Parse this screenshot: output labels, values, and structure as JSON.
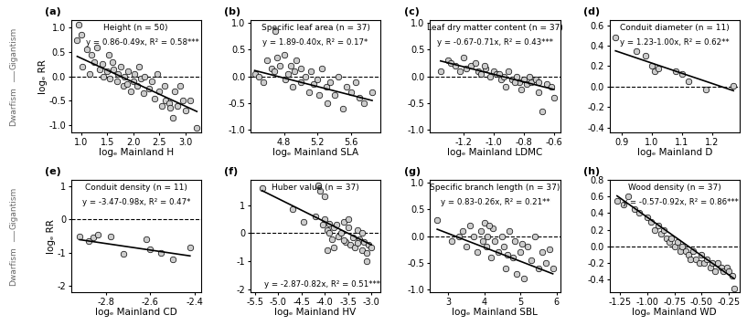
{
  "chart_data": [
    {
      "type": "scatter",
      "title": "Height (n = 50)",
      "xlabel": "logₑ Mainland H",
      "ylabel": "logₑ RR",
      "annotations": {
        "panel": "(a)",
        "equation": "y = 0.86-0.49x, R² = 0.58***",
        "side_top": "Gigantism",
        "side_bottom": "Dwarfism"
      },
      "fit_line": {
        "intercept": 0.86,
        "slope": -0.49
      },
      "hline": 0,
      "x": [
        0.92,
        0.95,
        1.0,
        1.02,
        1.1,
        1.15,
        1.2,
        1.25,
        1.3,
        1.35,
        1.4,
        1.42,
        1.5,
        1.52,
        1.55,
        1.6,
        1.62,
        1.68,
        1.7,
        1.75,
        1.8,
        1.82,
        1.88,
        1.9,
        1.95,
        2.0,
        2.02,
        2.08,
        2.1,
        2.15,
        2.2,
        2.22,
        2.3,
        2.35,
        2.4,
        2.45,
        2.5,
        2.55,
        2.6,
        2.62,
        2.68,
        2.7,
        2.75,
        2.8,
        2.85,
        2.9,
        2.95,
        3.0,
        3.1,
        3.22
      ],
      "values": [
        0.75,
        1.05,
        0.85,
        0.2,
        0.55,
        0.05,
        0.45,
        0.3,
        0.6,
        0.15,
        0.25,
        0.0,
        0.1,
        0.45,
        -0.05,
        0.3,
        0.15,
        -0.1,
        0.05,
        0.2,
        -0.2,
        0.0,
        -0.15,
        0.1,
        -0.3,
        -0.1,
        0.05,
        -0.2,
        0.2,
        -0.05,
        -0.35,
        0.0,
        -0.25,
        -0.1,
        -0.45,
        0.05,
        -0.3,
        -0.6,
        -0.2,
        -0.5,
        -0.55,
        -0.65,
        -0.85,
        -0.3,
        -0.6,
        -0.2,
        -0.5,
        -0.7,
        -0.5,
        -1.05
      ],
      "xlim": [
        0.8,
        3.3
      ],
      "xticks": [
        1.0,
        1.5,
        2.0,
        2.5,
        3.0
      ],
      "ylim": [
        -1.15,
        1.15
      ],
      "yticks": [
        -1.0,
        -0.5,
        0.0,
        0.5,
        1.0
      ],
      "color": "#cccccc",
      "marker": "o"
    },
    {
      "type": "scatter",
      "title": "Specific leaf area (n = 37)",
      "xlabel": "logₑ Mainland SLA",
      "annotations": {
        "panel": "(b)",
        "equation": "y = 1.89-0.40x, R² = 0.17*"
      },
      "fit_line": {
        "intercept": 1.89,
        "slope": -0.4
      },
      "hline": 0,
      "x": [
        4.45,
        4.5,
        4.55,
        4.6,
        4.65,
        4.7,
        4.72,
        4.75,
        4.8,
        4.82,
        4.85,
        4.88,
        4.9,
        4.92,
        4.95,
        5.0,
        5.0,
        5.05,
        5.1,
        5.12,
        5.15,
        5.2,
        5.22,
        5.25,
        5.3,
        5.32,
        5.35,
        5.4,
        5.45,
        5.5,
        5.55,
        5.6,
        5.65,
        5.7,
        5.75,
        5.85,
        4.68
      ],
      "values": [
        0.05,
        0.0,
        -0.1,
        0.3,
        0.15,
        0.85,
        0.35,
        0.2,
        0.4,
        -0.05,
        0.05,
        0.2,
        -0.2,
        0.1,
        0.3,
        -0.1,
        0.15,
        0.0,
        -0.3,
        0.1,
        -0.15,
        -0.05,
        -0.35,
        0.15,
        -0.2,
        -0.5,
        -0.1,
        -0.35,
        0.0,
        -0.6,
        -0.2,
        -0.3,
        -0.1,
        -0.4,
        -0.5,
        -0.3,
        0.1
      ],
      "xlim": [
        4.4,
        5.95
      ],
      "xticks": [
        4.8,
        5.2,
        5.6
      ],
      "ylim": [
        -1.05,
        1.05
      ],
      "yticks": [
        -1.0,
        -0.5,
        0.0,
        0.5,
        1.0
      ],
      "color": "#cccccc",
      "marker": "o"
    },
    {
      "type": "scatter",
      "title": "Leaf dry matter content (n = 37)",
      "xlabel": "logₑ Mainland LDMC",
      "annotations": {
        "panel": "(c)",
        "equation": "y = -0.67-0.71x, R² = 0.43***"
      },
      "fit_line": {
        "intercept": -0.67,
        "slope": -0.71
      },
      "hline": 0,
      "x": [
        -1.35,
        -1.3,
        -1.28,
        -1.25,
        -1.2,
        -1.18,
        -1.15,
        -1.12,
        -1.1,
        -1.08,
        -1.05,
        -1.02,
        -1.0,
        -0.98,
        -0.95,
        -0.93,
        -0.9,
        -0.88,
        -0.85,
        -0.83,
        -0.8,
        -0.78,
        -0.75,
        -0.72,
        -0.7,
        -0.68,
        -0.65,
        -0.62,
        -0.6,
        -1.22,
        -1.06,
        -0.96,
        -0.86,
        -0.76,
        -0.92,
        -0.82,
        -0.7
      ],
      "values": [
        0.1,
        0.3,
        0.25,
        0.2,
        0.35,
        0.15,
        0.2,
        0.25,
        0.1,
        0.05,
        0.15,
        0.0,
        0.1,
        0.05,
        -0.05,
        0.0,
        0.1,
        -0.05,
        0.0,
        -0.1,
        -0.05,
        -0.15,
        -0.1,
        -0.05,
        -0.3,
        -0.65,
        -0.15,
        -0.2,
        -0.4,
        0.1,
        0.2,
        0.05,
        -0.1,
        0.0,
        -0.2,
        -0.25,
        -0.1
      ],
      "xlim": [
        -1.42,
        -0.56
      ],
      "xticks": [
        -1.2,
        -1.0,
        -0.8,
        -0.6
      ],
      "ylim": [
        -1.05,
        1.05
      ],
      "yticks": [
        -1.0,
        -0.5,
        0.0,
        0.5,
        1.0
      ],
      "color": "#cccccc",
      "marker": "o"
    },
    {
      "type": "scatter",
      "title": "Conduit diameter (n = 11)",
      "xlabel": "logₑ Mainland D",
      "annotations": {
        "panel": "(d)",
        "equation": "y = 1.23-1.00x, R² = 0.62**"
      },
      "fit_line": {
        "intercept": 1.23,
        "slope": -1.0
      },
      "hline": 0,
      "x": [
        0.88,
        0.95,
        0.98,
        1.0,
        1.01,
        1.02,
        1.08,
        1.1,
        1.12,
        1.18,
        1.27
      ],
      "values": [
        0.48,
        0.35,
        0.3,
        0.2,
        0.15,
        0.18,
        0.15,
        0.12,
        0.05,
        -0.03,
        0.01
      ],
      "xlim": [
        0.86,
        1.29
      ],
      "xticks": [
        0.9,
        1.0,
        1.1,
        1.2
      ],
      "ylim": [
        -0.45,
        0.65
      ],
      "yticks": [
        -0.4,
        -0.2,
        0.0,
        0.2,
        0.4,
        0.6
      ],
      "color": "#cccccc",
      "marker": "o"
    },
    {
      "type": "scatter",
      "title": "Conduit density (n = 11)",
      "xlabel": "logₑ Mainland CD",
      "ylabel": "logₑ RR",
      "annotations": {
        "panel": "(e)",
        "equation": "y = -3.47-0.98x, R² = 0.47*",
        "side_top": "Gigantism",
        "side_bottom": "Dwarfism"
      },
      "fit_line": {
        "intercept": -3.47,
        "slope": -0.98
      },
      "hline": 0,
      "x": [
        -2.92,
        -2.88,
        -2.86,
        -2.84,
        -2.78,
        -2.72,
        -2.62,
        -2.6,
        -2.55,
        -2.5,
        -2.42
      ],
      "values": [
        -0.5,
        -0.65,
        -0.55,
        -0.45,
        -0.5,
        -1.05,
        -0.6,
        -0.9,
        -1.0,
        -1.2,
        -0.85
      ],
      "xlim": [
        -2.96,
        -2.37
      ],
      "xticks": [
        -2.8,
        -2.6,
        -2.4
      ],
      "ylim": [
        -2.2,
        1.2
      ],
      "yticks": [
        -2,
        -1,
        0,
        1
      ],
      "color": "#cccccc",
      "marker": "o"
    },
    {
      "type": "scatter",
      "title": "Huber value (n = 37)",
      "xlabel": "logₑ Mainland HV",
      "annotations": {
        "panel": "(f)",
        "equation": "y = -2.87-0.82x, R² = 0.51***"
      },
      "fit_line": {
        "intercept": -2.87,
        "slope": -0.82
      },
      "hline": 0,
      "x": [
        -5.35,
        -4.7,
        -4.45,
        -4.15,
        -4.1,
        -4.05,
        -4.0,
        -3.95,
        -3.9,
        -3.85,
        -3.8,
        -3.75,
        -3.7,
        -3.65,
        -3.6,
        -3.55,
        -3.5,
        -3.45,
        -3.4,
        -3.35,
        -3.3,
        -3.25,
        -3.2,
        -3.15,
        -3.1,
        -3.05,
        -3.0,
        -4.2,
        -3.9,
        -3.6,
        -3.5,
        -3.3,
        -3.2,
        -3.1,
        -4.0,
        -3.8,
        -3.95
      ],
      "values": [
        1.6,
        0.85,
        0.4,
        1.7,
        1.5,
        0.3,
        0.5,
        0.1,
        0.35,
        -0.2,
        0.2,
        0.3,
        -0.1,
        0.0,
        0.4,
        -0.3,
        0.2,
        -0.4,
        -0.15,
        -0.5,
        0.1,
        -0.2,
        -0.6,
        -0.3,
        -0.7,
        -0.4,
        -0.5,
        0.6,
        0.0,
        -0.25,
        0.5,
        -0.35,
        0.0,
        -1.0,
        1.3,
        -0.5,
        -0.6
      ],
      "xlim": [
        -5.6,
        -2.8
      ],
      "xticks": [
        -5.5,
        -5.0,
        -4.5,
        -4.0,
        -3.5,
        -3.0
      ],
      "ylim": [
        -2.1,
        1.9
      ],
      "yticks": [
        -2,
        -1,
        0,
        1
      ],
      "color": "#cccccc",
      "marker": "o"
    },
    {
      "type": "scatter",
      "title": "Specific branch length (n = 37)",
      "xlabel": "logₑ Mainland SBL",
      "annotations": {
        "panel": "(g)",
        "equation": "y = 0.83-0.26x, R² = 0.21**"
      },
      "fit_line": {
        "intercept": 0.83,
        "slope": -0.26
      },
      "hline": 0,
      "x": [
        2.7,
        3.1,
        3.3,
        3.5,
        3.6,
        3.7,
        3.8,
        3.9,
        3.95,
        4.0,
        4.05,
        4.1,
        4.2,
        4.25,
        4.3,
        4.4,
        4.5,
        4.55,
        4.6,
        4.7,
        4.8,
        4.85,
        4.9,
        5.0,
        5.05,
        5.1,
        5.2,
        5.3,
        5.4,
        5.5,
        5.6,
        5.7,
        5.8,
        5.9,
        3.4,
        4.15,
        4.65
      ],
      "values": [
        0.3,
        -0.1,
        0.0,
        -0.2,
        0.2,
        0.0,
        -0.3,
        0.1,
        -0.1,
        0.25,
        -0.2,
        0.0,
        -0.4,
        0.15,
        -0.1,
        -0.3,
        0.0,
        -0.2,
        -0.6,
        0.1,
        -0.4,
        -0.1,
        -0.7,
        -0.3,
        -0.15,
        -0.8,
        -0.2,
        -0.45,
        0.0,
        -0.6,
        -0.3,
        -0.5,
        -0.25,
        -0.6,
        0.1,
        0.2,
        -0.35
      ],
      "xlim": [
        2.5,
        6.1
      ],
      "xticks": [
        3,
        4,
        5,
        6
      ],
      "ylim": [
        -1.05,
        1.05
      ],
      "yticks": [
        -1.0,
        -0.5,
        0.0,
        0.5,
        1.0
      ],
      "color": "#cccccc",
      "marker": "o"
    },
    {
      "type": "scatter",
      "title": "Wood density (n = 37)",
      "xlabel": "logₑ Mainland WD",
      "annotations": {
        "panel": "(h)",
        "equation": "y = -0.57-0.92x, R² = 0.86***"
      },
      "fit_line": {
        "intercept": -0.57,
        "slope": -0.92
      },
      "hline": 0,
      "x": [
        -1.28,
        -1.22,
        -1.18,
        -1.12,
        -1.08,
        -1.0,
        -0.97,
        -0.93,
        -0.9,
        -0.87,
        -0.85,
        -0.82,
        -0.8,
        -0.78,
        -0.75,
        -0.72,
        -0.7,
        -0.68,
        -0.65,
        -0.62,
        -0.6,
        -0.58,
        -0.55,
        -0.52,
        -0.5,
        -0.48,
        -0.45,
        -0.42,
        -0.4,
        -0.38,
        -0.35,
        -0.32,
        -0.3,
        -0.27,
        -0.25,
        -0.22,
        -0.2
      ],
      "values": [
        0.55,
        0.5,
        0.6,
        0.45,
        0.4,
        0.35,
        0.3,
        0.2,
        0.25,
        0.15,
        0.2,
        0.1,
        0.05,
        0.1,
        0.0,
        0.05,
        -0.05,
        0.0,
        -0.05,
        -0.1,
        -0.15,
        -0.05,
        -0.15,
        -0.2,
        -0.1,
        -0.2,
        -0.15,
        -0.25,
        -0.2,
        -0.3,
        -0.2,
        -0.25,
        -0.3,
        -0.25,
        -0.3,
        -0.35,
        -0.5
      ],
      "xlim": [
        -1.35,
        -0.15
      ],
      "xticks": [
        {
          "value": -1.25,
          "label": "-1.25"
        },
        {
          "value": -1.0,
          "label": "-1.00"
        },
        {
          "value": -0.75,
          "label": "-0.75"
        },
        {
          "value": -0.5,
          "label": "-0.50"
        },
        {
          "value": -0.25,
          "label": "-0.25"
        }
      ],
      "ylim": [
        -0.55,
        0.8
      ],
      "yticks": [
        -0.4,
        -0.2,
        0.0,
        0.2,
        0.4,
        0.6,
        0.8
      ],
      "color": "#cccccc",
      "marker": "o"
    }
  ]
}
